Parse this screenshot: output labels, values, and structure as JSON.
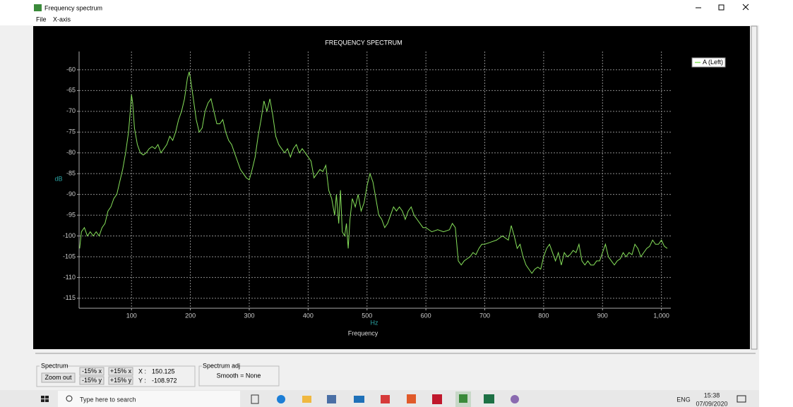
{
  "window": {
    "title": "Frequency spectrum",
    "menu": [
      "File",
      "X-axis"
    ]
  },
  "chart_data": {
    "type": "line",
    "title": "FREQUENCY SPECTRUM",
    "x_label": "Frequency",
    "x_unit": "Hz",
    "y_label": "dB",
    "x": [
      12,
      15,
      20,
      25,
      30,
      35,
      40,
      45,
      50,
      55,
      60,
      65,
      70,
      75,
      80,
      85,
      90,
      95,
      98,
      100,
      102,
      105,
      110,
      115,
      120,
      125,
      130,
      135,
      140,
      145,
      150,
      155,
      160,
      165,
      170,
      175,
      180,
      185,
      190,
      195,
      198,
      200,
      205,
      210,
      215,
      220,
      225,
      230,
      235,
      240,
      245,
      250,
      255,
      260,
      265,
      270,
      275,
      280,
      285,
      290,
      295,
      300,
      305,
      310,
      315,
      320,
      325,
      330,
      335,
      340,
      345,
      350,
      355,
      360,
      365,
      370,
      375,
      380,
      385,
      390,
      395,
      400,
      405,
      410,
      415,
      420,
      425,
      430,
      435,
      440,
      445,
      448,
      452,
      455,
      458,
      462,
      465,
      468,
      471,
      475,
      480,
      485,
      490,
      495,
      500,
      505,
      510,
      515,
      520,
      525,
      530,
      535,
      540,
      545,
      550,
      555,
      560,
      565,
      570,
      575,
      580,
      585,
      590,
      595,
      600,
      610,
      620,
      630,
      640,
      645,
      650,
      655,
      660,
      665,
      670,
      675,
      680,
      685,
      690,
      695,
      700,
      710,
      720,
      730,
      740,
      745,
      750,
      755,
      760,
      765,
      770,
      775,
      780,
      785,
      790,
      795,
      800,
      805,
      810,
      815,
      820,
      825,
      830,
      835,
      840,
      845,
      850,
      855,
      860,
      865,
      870,
      875,
      880,
      885,
      890,
      895,
      900,
      905,
      910,
      915,
      920,
      925,
      930,
      935,
      940,
      945,
      950,
      955,
      960,
      965,
      970,
      975,
      980,
      985,
      990,
      995,
      1000,
      1005,
      1010
    ],
    "series": [
      {
        "name": "A (Left)",
        "color": "#86e05a",
        "values": [
          -103,
          -99,
          -98,
          -100,
          -99,
          -100,
          -99,
          -100,
          -98,
          -97,
          -94,
          -93,
          -91,
          -90,
          -87,
          -84,
          -80,
          -75,
          -70,
          -66,
          -68,
          -74,
          -78,
          -80,
          -80.5,
          -80,
          -79,
          -78.5,
          -79,
          -78,
          -80,
          -79,
          -78,
          -76,
          -77,
          -75,
          -72,
          -70,
          -67,
          -62,
          -60.5,
          -62,
          -67,
          -72,
          -75,
          -74,
          -70,
          -68,
          -67,
          -70,
          -73,
          -73,
          -72,
          -75,
          -77,
          -78,
          -80,
          -82,
          -84,
          -85,
          -86,
          -86.5,
          -84,
          -81,
          -76,
          -72,
          -67.5,
          -70,
          -67,
          -71,
          -76,
          -78,
          -79,
          -80,
          -79,
          -81,
          -79,
          -78,
          -80,
          -79,
          -80,
          -81,
          -82,
          -86,
          -85,
          -84,
          -84.5,
          -83,
          -89,
          -91,
          -95,
          -90,
          -97,
          -89,
          -99,
          -100,
          -97,
          -103,
          -96,
          -91,
          -93,
          -90,
          -94,
          -92,
          -88,
          -85,
          -87,
          -91,
          -95,
          -96,
          -98,
          -97,
          -95,
          -93,
          -94,
          -93,
          -94,
          -96,
          -94,
          -93,
          -95,
          -96,
          -97,
          -98,
          -98,
          -99,
          -98.5,
          -99,
          -98.5,
          -97,
          -98,
          -106,
          -107,
          -106,
          -105.5,
          -105,
          -104,
          -104.5,
          -103,
          -102,
          -102,
          -101.5,
          -101,
          -100,
          -101,
          -97.5,
          -100,
          -103,
          -102,
          -105,
          -107,
          -108,
          -109,
          -108,
          -107.5,
          -108,
          -105,
          -103,
          -102,
          -104,
          -106,
          -104,
          -107,
          -104,
          -105,
          -104.5,
          -103.5,
          -104,
          -102,
          -106,
          -107,
          -106,
          -107,
          -107,
          -106,
          -106,
          -104,
          -102,
          -105,
          -106,
          -107,
          -106,
          -105.5,
          -104,
          -105,
          -104,
          -104.5,
          -102,
          -103,
          -105,
          -104,
          -103,
          -102.5,
          -101,
          -102,
          -102,
          -101,
          -102.5,
          -103
        ]
      }
    ],
    "xlim": [
      11,
      1016
    ],
    "ylim": [
      -117.4,
      -55.6
    ],
    "xticks": [
      100,
      200,
      300,
      400,
      500,
      600,
      700,
      800,
      900,
      {
        "value": 1000,
        "label": "1,000"
      }
    ],
    "yticks": [
      -60,
      -65,
      -70,
      -75,
      -80,
      -85,
      -90,
      -95,
      -100,
      -105,
      -110,
      -115
    ],
    "grid": true,
    "legend": "upper right"
  },
  "controls": {
    "spectrum_group": "Spectrum",
    "zoom_out": "Zoom out",
    "minus_x": "-15% x",
    "plus_x": "+15% x",
    "minus_y": "-15% y",
    "plus_y": "+15% y",
    "x_label": "X :",
    "x_value": "150.125",
    "y_label": "Y :",
    "y_value": "-108.972",
    "adj_group": "Spectrum adj",
    "smooth": "Smooth = None"
  },
  "taskbar": {
    "search": "Type here to search",
    "language": "ENG",
    "time": "15:38",
    "date": "07/09/2020"
  }
}
